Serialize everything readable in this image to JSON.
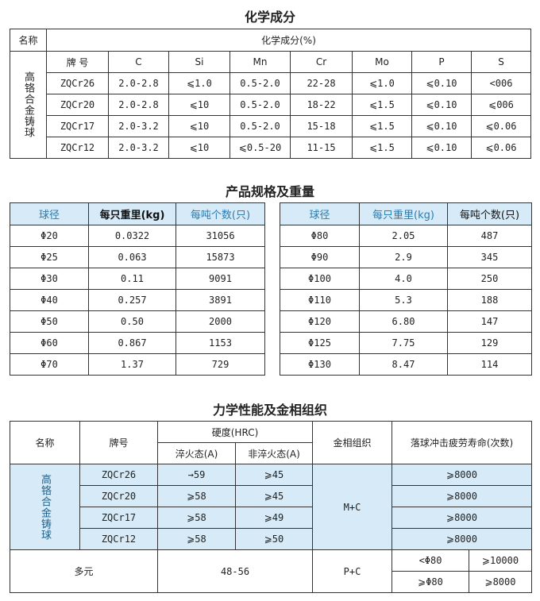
{
  "chem": {
    "title": "化学成分",
    "name_header": "名称",
    "comp_header": "化学成分(%)",
    "group": "高铬合金铸球",
    "columns": [
      "牌 号",
      "C",
      "Si",
      "Mn",
      "Cr",
      "Mo",
      "P",
      "S"
    ],
    "rows": [
      [
        "ZQCr26",
        "2.0-2.8",
        "⩽1.0",
        "0.5-2.0",
        "22-28",
        "⩽1.0",
        "⩽0.10",
        "<006"
      ],
      [
        "ZQCr20",
        "2.0-2.8",
        "⩽10",
        "0.5-2.0",
        "18-22",
        "⩽1.5",
        "⩽0.10",
        "⩽006"
      ],
      [
        "ZQCr17",
        "2.0-3.2",
        "⩽10",
        "0.5-2.0",
        "15-18",
        "⩽1.5",
        "⩽0.10",
        "⩽0.06"
      ],
      [
        "ZQCr12",
        "2.0-3.2",
        "⩽10",
        "⩽0.5-20",
        "11-15",
        "⩽1.5",
        "⩽0.10",
        "⩽0.06"
      ]
    ]
  },
  "spec": {
    "title": "产品规格及重量",
    "left": {
      "headers": [
        "球径",
        "每只重里(kg)",
        "每吨个数(只)"
      ],
      "rows": [
        [
          "Φ20",
          "0.0322",
          "31056"
        ],
        [
          "Φ25",
          "0.063",
          "15873"
        ],
        [
          "Φ30",
          "0.11",
          "9091"
        ],
        [
          "Φ40",
          "0.257",
          "3891"
        ],
        [
          "Φ50",
          "0.50",
          "2000"
        ],
        [
          "Φ60",
          "0.867",
          "1153"
        ],
        [
          "Φ70",
          "1.37",
          "729"
        ]
      ]
    },
    "right": {
      "headers": [
        "球径",
        "每只重里(kg)",
        "每吨个数(只)"
      ],
      "rows": [
        [
          "Φ80",
          "2.05",
          "487"
        ],
        [
          "Φ90",
          "2.9",
          "345"
        ],
        [
          "Φ100",
          "4.0",
          "250"
        ],
        [
          "Φ110",
          "5.3",
          "188"
        ],
        [
          "Φ120",
          "6.80",
          "147"
        ],
        [
          "Φ125",
          "7.75",
          "129"
        ],
        [
          "Φ130",
          "8.47",
          "114"
        ]
      ]
    }
  },
  "mech": {
    "title": "力学性能及金相组织",
    "h_name": "名称",
    "h_grade": "牌号",
    "h_hard": "硬度(HRC)",
    "h_q": "淬火态(A)",
    "h_nq": "非淬火态(A)",
    "h_micro": "金相组织",
    "h_life": "落球冲击疲劳寿命(次数)",
    "group": "高铬合金铸球",
    "micro": "M+C",
    "rows": [
      [
        "ZQCr26",
        "→59",
        "⩾45",
        "⩾8000"
      ],
      [
        "ZQCr20",
        "⩾58",
        "⩾45",
        "⩾8000"
      ],
      [
        "ZQCr17",
        "⩾58",
        "⩾49",
        "⩾8000"
      ],
      [
        "ZQCr12",
        "⩾58",
        "⩾50",
        "⩾8000"
      ]
    ],
    "multi": {
      "name": "多元",
      "hard": "48-56",
      "micro": "P+C",
      "life": [
        [
          "<Φ80",
          "⩾10000"
        ],
        [
          "⩾Φ80",
          "⩾8000"
        ]
      ]
    }
  },
  "colors": {
    "header_bg": "#d6ebf7",
    "header_text": "#2a7bb0"
  }
}
